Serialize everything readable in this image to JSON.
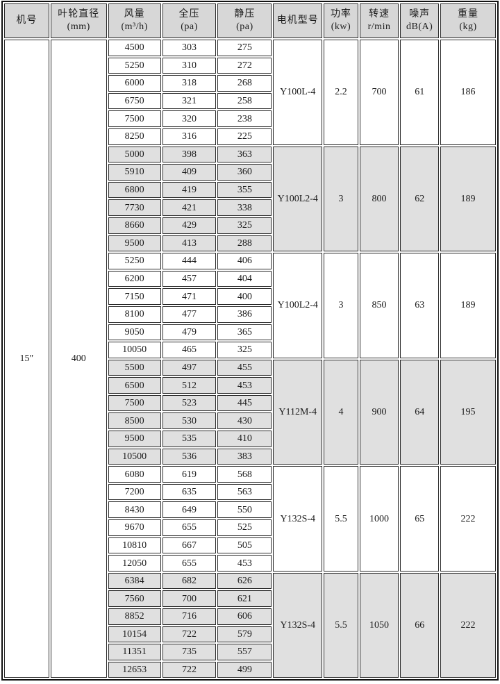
{
  "table": {
    "headers": [
      {
        "key": "machine-no",
        "label": "机号",
        "unit": ""
      },
      {
        "key": "impeller-diameter",
        "label": "叶轮直径",
        "unit": "(mm)"
      },
      {
        "key": "airflow",
        "label": "风量",
        "unit": "(m³/h)"
      },
      {
        "key": "total-pressure",
        "label": "全压",
        "unit": "(pa)"
      },
      {
        "key": "static-pressure",
        "label": "静压",
        "unit": "(pa)"
      },
      {
        "key": "motor-model",
        "label": "电机型号",
        "unit": ""
      },
      {
        "key": "power",
        "label": "功率",
        "unit": "(kw)"
      },
      {
        "key": "speed",
        "label": "转速",
        "unit": "r/min"
      },
      {
        "key": "noise",
        "label": "噪声",
        "unit": "dB(A)"
      },
      {
        "key": "weight",
        "label": "重量",
        "unit": "(kg)"
      }
    ],
    "machine_no": "15″",
    "impeller_diameter_mm": "400",
    "groups": [
      {
        "shaded": false,
        "rows": [
          [
            "4500",
            "303",
            "275"
          ],
          [
            "5250",
            "310",
            "272"
          ],
          [
            "6000",
            "318",
            "268"
          ],
          [
            "6750",
            "321",
            "258"
          ],
          [
            "7500",
            "320",
            "238"
          ],
          [
            "8250",
            "316",
            "225"
          ]
        ],
        "motor_model": "Y100L-4",
        "power_kw": "2.2",
        "speed_rpm": "700",
        "noise_db": "61",
        "weight_kg": "186"
      },
      {
        "shaded": true,
        "rows": [
          [
            "5000",
            "398",
            "363"
          ],
          [
            "5910",
            "409",
            "360"
          ],
          [
            "6800",
            "419",
            "355"
          ],
          [
            "7730",
            "421",
            "338"
          ],
          [
            "8660",
            "429",
            "325"
          ],
          [
            "9500",
            "413",
            "288"
          ]
        ],
        "motor_model": "Y100L2-4",
        "power_kw": "3",
        "speed_rpm": "800",
        "noise_db": "62",
        "weight_kg": "189"
      },
      {
        "shaded": false,
        "rows": [
          [
            "5250",
            "444",
            "406"
          ],
          [
            "6200",
            "457",
            "404"
          ],
          [
            "7150",
            "471",
            "400"
          ],
          [
            "8100",
            "477",
            "386"
          ],
          [
            "9050",
            "479",
            "365"
          ],
          [
            "10050",
            "465",
            "325"
          ]
        ],
        "motor_model": "Y100L2-4",
        "power_kw": "3",
        "speed_rpm": "850",
        "noise_db": "63",
        "weight_kg": "189"
      },
      {
        "shaded": true,
        "rows": [
          [
            "5500",
            "497",
            "455"
          ],
          [
            "6500",
            "512",
            "453"
          ],
          [
            "7500",
            "523",
            "445"
          ],
          [
            "8500",
            "530",
            "430"
          ],
          [
            "9500",
            "535",
            "410"
          ],
          [
            "10500",
            "536",
            "383"
          ]
        ],
        "motor_model": "Y112M-4",
        "power_kw": "4",
        "speed_rpm": "900",
        "noise_db": "64",
        "weight_kg": "195"
      },
      {
        "shaded": false,
        "rows": [
          [
            "6080",
            "619",
            "568"
          ],
          [
            "7200",
            "635",
            "563"
          ],
          [
            "8430",
            "649",
            "550"
          ],
          [
            "9670",
            "655",
            "525"
          ],
          [
            "10810",
            "667",
            "505"
          ],
          [
            "12050",
            "655",
            "453"
          ]
        ],
        "motor_model": "Y132S-4",
        "power_kw": "5.5",
        "speed_rpm": "1000",
        "noise_db": "65",
        "weight_kg": "222"
      },
      {
        "shaded": true,
        "rows": [
          [
            "6384",
            "682",
            "626"
          ],
          [
            "7560",
            "700",
            "621"
          ],
          [
            "8852",
            "716",
            "606"
          ],
          [
            "10154",
            "722",
            "579"
          ],
          [
            "11351",
            "735",
            "557"
          ],
          [
            "12653",
            "722",
            "499"
          ]
        ],
        "motor_model": "Y132S-4",
        "power_kw": "5.5",
        "speed_rpm": "1050",
        "noise_db": "66",
        "weight_kg": "222"
      }
    ]
  },
  "colors": {
    "shaded_bg": "#e0e0e0",
    "header_bg": "#d7d7d7",
    "border": "#2a2a2a"
  }
}
